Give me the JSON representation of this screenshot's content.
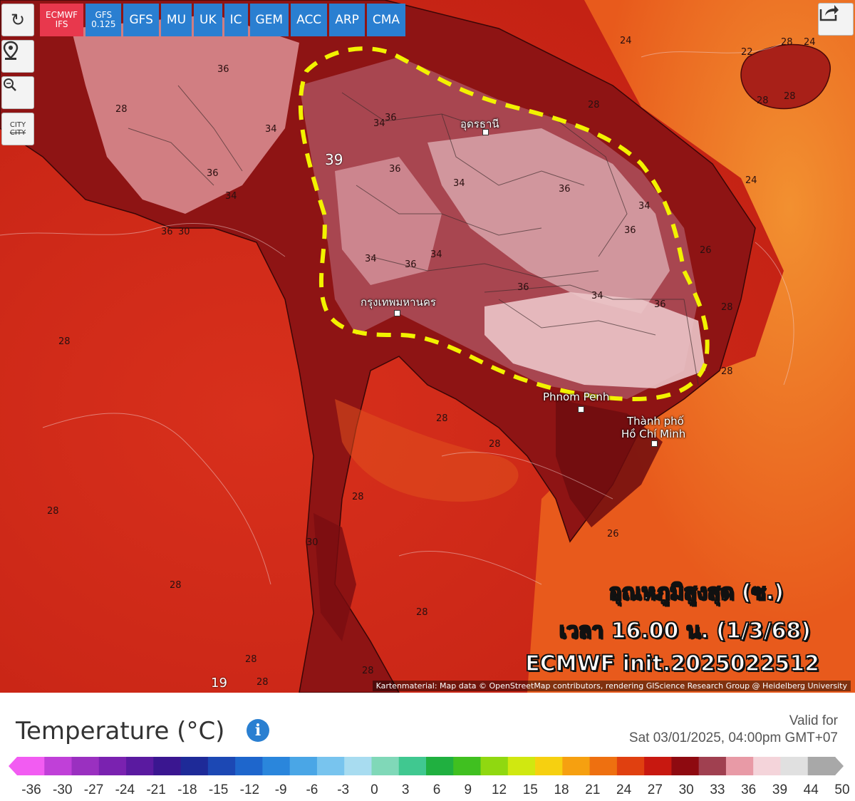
{
  "toolbar": {
    "refresh_icon": "refresh-icon",
    "location_icon": "location-pin-icon",
    "zoom_icon": "zoom-icon",
    "city_label_top": "CITY",
    "city_label_bottom": "CITY",
    "share_icon": "share-icon"
  },
  "models": [
    {
      "line1": "ECMWF",
      "line2": "IFS",
      "active": true
    },
    {
      "line1": "GFS",
      "line2": "0.125",
      "active": false
    },
    {
      "line1": "GFS",
      "line2": "",
      "active": false
    },
    {
      "line1": "MU",
      "line2": "",
      "active": false
    },
    {
      "line1": "UK",
      "line2": "",
      "active": false
    },
    {
      "line1": "IC",
      "line2": "",
      "active": false
    },
    {
      "line1": "GEM",
      "line2": "",
      "active": false
    },
    {
      "line1": "ACC",
      "line2": "",
      "active": false
    },
    {
      "line1": "ARP",
      "line2": "",
      "active": false
    },
    {
      "line1": "CMA",
      "line2": "",
      "active": false
    }
  ],
  "map": {
    "cities": {
      "vientiane": "อุดรธานี",
      "bangkok": "กรุงเทพมหานคร",
      "phnom_penh": "Phnom Penh",
      "hcm_line1": "Thành phố",
      "hcm_line2": "Hồ Chí Minh"
    },
    "isotherm_labels": [
      "36",
      "28",
      "34",
      "36",
      "34",
      "36",
      "34",
      "39",
      "36",
      "34",
      "34",
      "36",
      "34",
      "36",
      "34",
      "36",
      "36",
      "34",
      "36",
      "30",
      "36",
      "28",
      "28",
      "24",
      "22",
      "24",
      "28",
      "28",
      "24",
      "26",
      "28",
      "28",
      "28",
      "28",
      "28",
      "28",
      "28",
      "30",
      "28",
      "28",
      "28",
      "28",
      "19",
      "28",
      "26"
    ],
    "overlay": {
      "line1": "อุณหภูมิสูงสุด (ซ.)",
      "line2": "เวลา 16.00 น. (1/3/68)",
      "line3": "ECMWF init.2025022512"
    },
    "attribution": "Kartenmaterial: Map data © OpenStreetMap contributors, rendering GIScience Research Group @ Heidelberg University",
    "highlight_color": "#f2f200"
  },
  "legend": {
    "title": "Temperature (°C)",
    "info_icon": "info-icon",
    "valid_label": "Valid for",
    "valid_time": "Sat 03/01/2025, 04:00pm GMT+07",
    "ticks": [
      "-36",
      "-30",
      "-27",
      "-24",
      "-21",
      "-18",
      "-15",
      "-12",
      "-9",
      "-6",
      "-3",
      "0",
      "3",
      "6",
      "9",
      "12",
      "15",
      "18",
      "21",
      "24",
      "27",
      "30",
      "33",
      "36",
      "39",
      "44",
      "50"
    ],
    "colors": [
      "#f25cf2",
      "#c040d8",
      "#9a30c0",
      "#7a22b0",
      "#5a1aa0",
      "#3a1690",
      "#1e2a98",
      "#1c48b4",
      "#1e66cc",
      "#2a86dc",
      "#4aa6e6",
      "#78c4ee",
      "#a8dcf0",
      "#80d8b8",
      "#40c890",
      "#20b040",
      "#40c020",
      "#90d810",
      "#d0e810",
      "#f6d010",
      "#f6a010",
      "#ee7010",
      "#e04010",
      "#c81810",
      "#8e0a10",
      "#a04050",
      "#e89aa6",
      "#f4d4da",
      "#e0e0e0",
      "#a8a8a8"
    ]
  }
}
